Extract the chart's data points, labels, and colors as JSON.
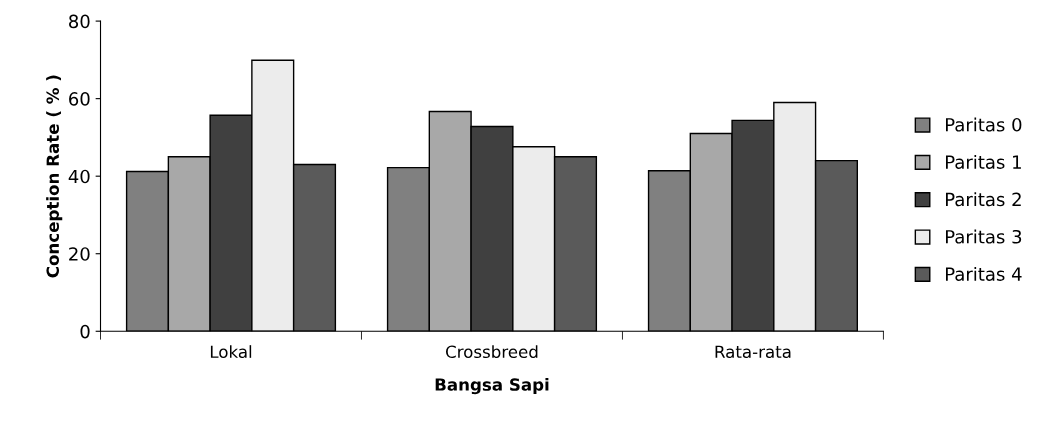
{
  "chart_data": {
    "type": "bar",
    "xlabel": "Bangsa Sapi",
    "ylabel": "Conception Rate ( % )",
    "categories": [
      "Lokal",
      "Crossbreed",
      "Rata-rata"
    ],
    "series": [
      {
        "name": "Paritas 0",
        "color": "#808080",
        "values": [
          41.2,
          42.2,
          41.4
        ]
      },
      {
        "name": "Paritas 1",
        "color": "#a8a8a8",
        "values": [
          45,
          56.7,
          51
        ]
      },
      {
        "name": "Paritas 2",
        "color": "#404040",
        "values": [
          55.7,
          52.8,
          54.4
        ]
      },
      {
        "name": "Paritas 3",
        "color": "#ececec",
        "values": [
          69.9,
          47.6,
          59
        ]
      },
      {
        "name": "Paritas 4",
        "color": "#5a5a5a",
        "values": [
          43,
          45,
          44
        ]
      }
    ],
    "ylim": [
      0,
      80
    ],
    "yticks": [
      0,
      20,
      40,
      60,
      80
    ],
    "grid": false,
    "legend": "right"
  }
}
